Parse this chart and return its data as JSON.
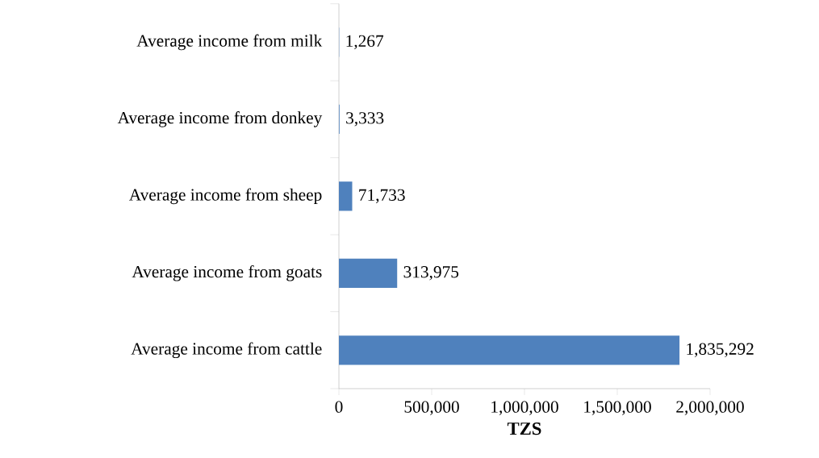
{
  "chart_data": {
    "type": "bar",
    "orientation": "horizontal",
    "categories": [
      "Average income from milk",
      "Average income from donkey",
      "Average income from sheep",
      "Average income from goats",
      "Average income from cattle"
    ],
    "values": [
      1267,
      3333,
      71733,
      313975,
      1835292
    ],
    "value_labels": [
      "1,267",
      "3,333",
      "71,733",
      "313,975",
      "1,835,292"
    ],
    "color": "#4f81bd",
    "xlabel": "TZS",
    "xlim": [
      0,
      2000000
    ],
    "xticks": [
      0,
      {
        "value": 500000,
        "label": "500,000"
      },
      {
        "value": 1000000,
        "label": "1,000,000"
      },
      {
        "value": 1500000,
        "label": "1,500,000"
      },
      {
        "value": 2000000,
        "label": "2,000,000"
      }
    ]
  }
}
